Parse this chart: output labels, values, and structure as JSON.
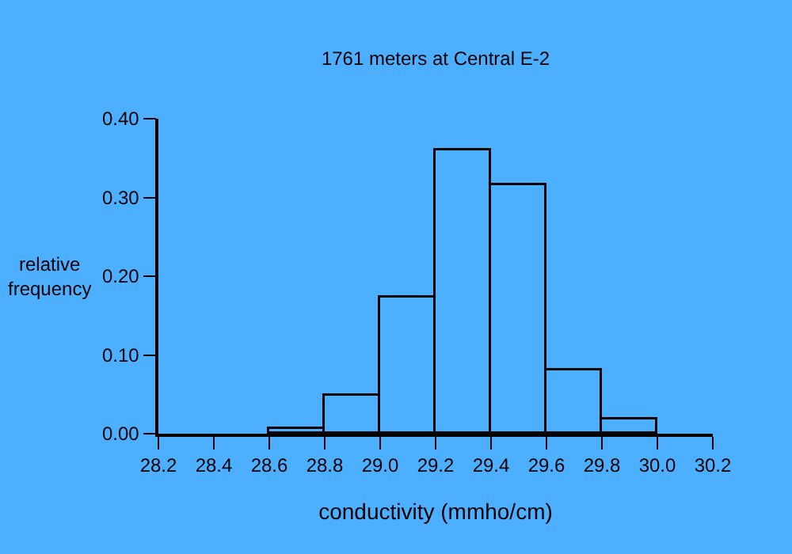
{
  "chart_data": {
    "type": "histogram",
    "title": "1761 meters at Central E-2",
    "xlabel": "conductivity (mmho/cm)",
    "ylabel": "relative\nfrequency",
    "bins": [
      28.6,
      28.8,
      29.0,
      29.2,
      29.4,
      29.6,
      29.8,
      30.0
    ],
    "values": [
      0.007,
      0.048,
      0.172,
      0.36,
      0.316,
      0.08,
      0.018
    ],
    "color": "#000000",
    "xlim": [
      28.2,
      30.2
    ],
    "xticks": [
      28.2,
      28.4,
      28.6,
      28.8,
      {
        "value": 29.0,
        "label": "29.0"
      },
      29.2,
      29.4,
      29.6,
      29.8,
      {
        "value": 30.0,
        "label": "30.0"
      },
      30.2
    ],
    "ylim": [
      0,
      0.4
    ],
    "yticks": [
      {
        "value": 0,
        "label": "0.00"
      },
      {
        "value": 0.1,
        "label": "0.10"
      },
      {
        "value": 0.2,
        "label": "0.20"
      },
      {
        "value": 0.3,
        "label": "0.30"
      },
      {
        "value": 0.4,
        "label": "0.40"
      }
    ],
    "grid": false
  }
}
